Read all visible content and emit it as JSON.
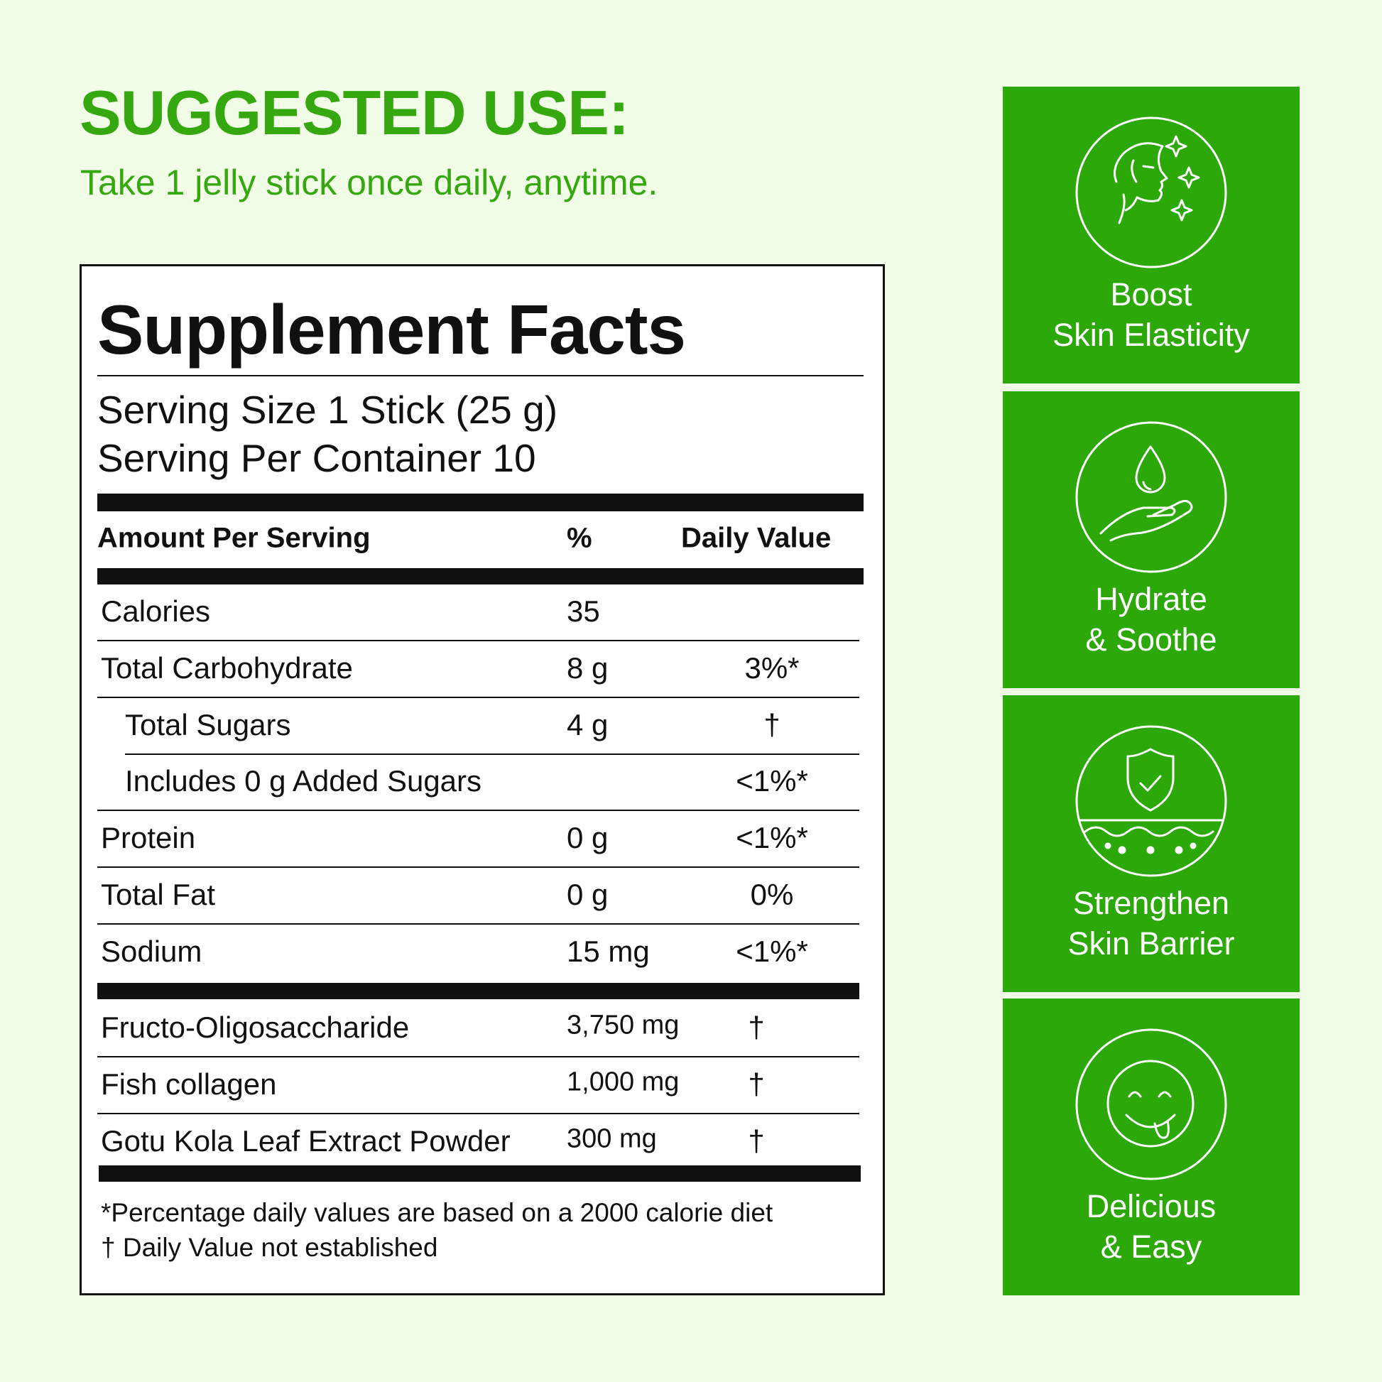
{
  "header": {
    "title": "SUGGESTED USE:",
    "subtitle": "Take 1 jelly stick once daily, anytime."
  },
  "facts": {
    "title": "Supplement Facts",
    "serving_size": "Serving Size 1 Stick (25 g)",
    "servings_per_container": "Serving Per Container 10",
    "columns": [
      "Amount Per Serving",
      "%",
      "Daily Value"
    ],
    "nutrients": [
      {
        "name": "Calories",
        "amount": "35"
      },
      {
        "name": "Total Carbohydrate",
        "amount": "8 g",
        "dv": "3%*"
      },
      {
        "name": "Total Sugars",
        "amount": "4 g",
        "dv": "†"
      },
      {
        "name": "Includes 0 g Added Sugars",
        "dv": "<1%*"
      },
      {
        "name": "Protein",
        "amount": "0 g",
        "dv": "<1%*"
      },
      {
        "name": "Total Fat",
        "amount": "0 g",
        "dv": "0%"
      },
      {
        "name": "Sodium",
        "amount": "15 mg",
        "dv": "<1%*"
      }
    ],
    "ingredients": [
      {
        "name": "Fructo-Oligosaccharide",
        "amount": "3,750 mg",
        "dv": "†"
      },
      {
        "name": "Fish collagen",
        "amount": "1,000 mg",
        "dv": "†"
      },
      {
        "name": "Gotu Kola Leaf Extract Powder",
        "amount": "300 mg",
        "dv": "†"
      }
    ],
    "footnotes": [
      "*Percentage daily values are based on a 2000 calorie diet",
      "† Daily Value not established"
    ]
  },
  "benefits": [
    {
      "lines": [
        "Boost",
        "Skin Elasticity"
      ]
    },
    {
      "lines": [
        "Hydrate",
        "& Soothe"
      ]
    },
    {
      "lines": [
        "Strengthen",
        "Skin Barrier"
      ]
    },
    {
      "lines": [
        "Delicious",
        "& Easy"
      ]
    }
  ]
}
